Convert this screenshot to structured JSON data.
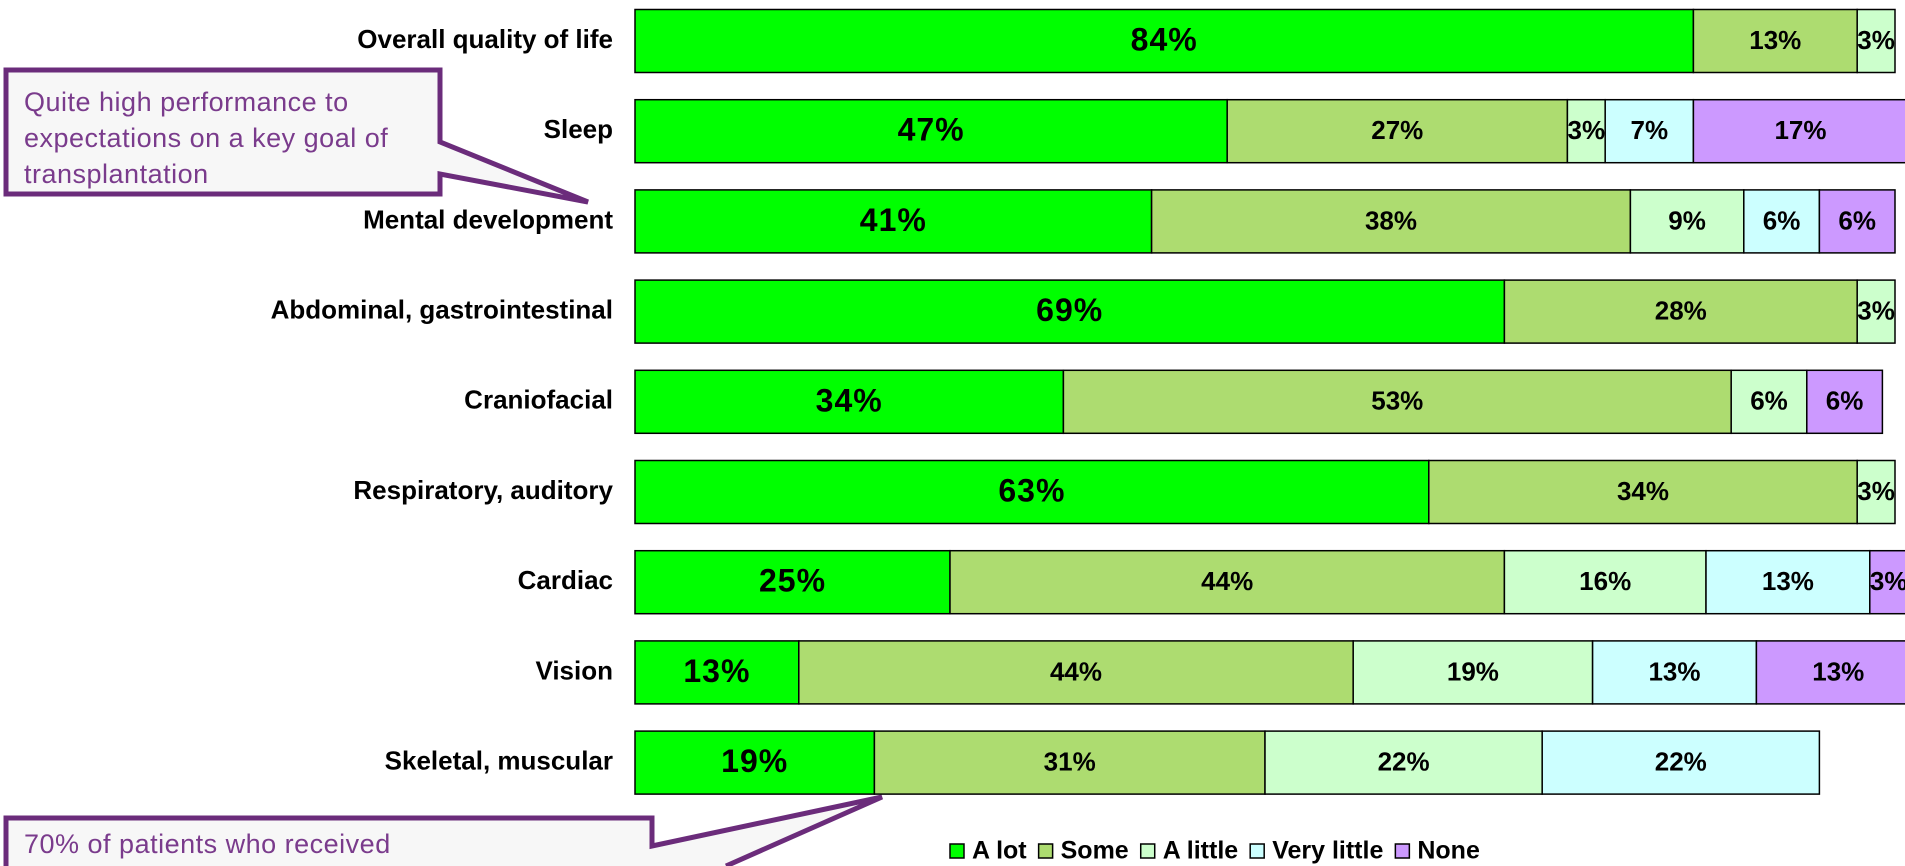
{
  "chart_data": {
    "type": "stacked-bar-horizontal",
    "categories": [
      "Overall quality of life",
      "Sleep",
      "Mental development",
      "Abdominal, gastrointestinal",
      "Craniofacial",
      "Respiratory, auditory",
      "Cardiac",
      "Vision",
      "Skeletal, muscular"
    ],
    "xlim": [
      0,
      100
    ],
    "legend": "bottom",
    "series": [
      {
        "name": "A lot",
        "color": "#00ff00",
        "values": [
          84,
          47,
          41,
          69,
          34,
          63,
          25,
          13,
          19
        ],
        "value_labels": [
          "84%",
          "47%",
          "41%",
          "69%",
          "34%",
          "63%",
          "25%",
          "13%",
          "19%"
        ]
      },
      {
        "name": "Some",
        "color": "#addc70",
        "values": [
          13,
          27,
          38,
          28,
          53,
          34,
          44,
          44,
          31
        ],
        "value_labels": [
          "13%",
          "27%",
          "38%",
          "28%",
          "53%",
          "34%",
          "44%",
          "44%",
          "31%"
        ]
      },
      {
        "name": "A little",
        "color": "#ccffcc",
        "values": [
          3,
          3,
          9,
          3,
          6,
          3,
          16,
          19,
          22
        ],
        "value_labels": [
          "3%",
          "3%",
          "9%",
          "3%",
          "6%",
          "3%",
          "16%",
          "19%",
          "22%"
        ]
      },
      {
        "name": "Very little",
        "color": "#ccffff",
        "values": [
          null,
          7,
          6,
          null,
          null,
          null,
          13,
          13,
          22
        ],
        "value_labels": [
          null,
          "7%",
          "6%",
          null,
          null,
          null,
          "13%",
          "13%",
          "22%"
        ]
      },
      {
        "name": "None",
        "color": "#cc99ff",
        "values": [
          null,
          17,
          6,
          null,
          6,
          null,
          3,
          13,
          null
        ],
        "value_labels": [
          null,
          "17%",
          "6%",
          null,
          "6%",
          null,
          "3%",
          "13%",
          null
        ]
      }
    ],
    "annotations": [
      "Quite high performance to expectations on a key goal of transplantation",
      "70% of patients who received"
    ]
  }
}
